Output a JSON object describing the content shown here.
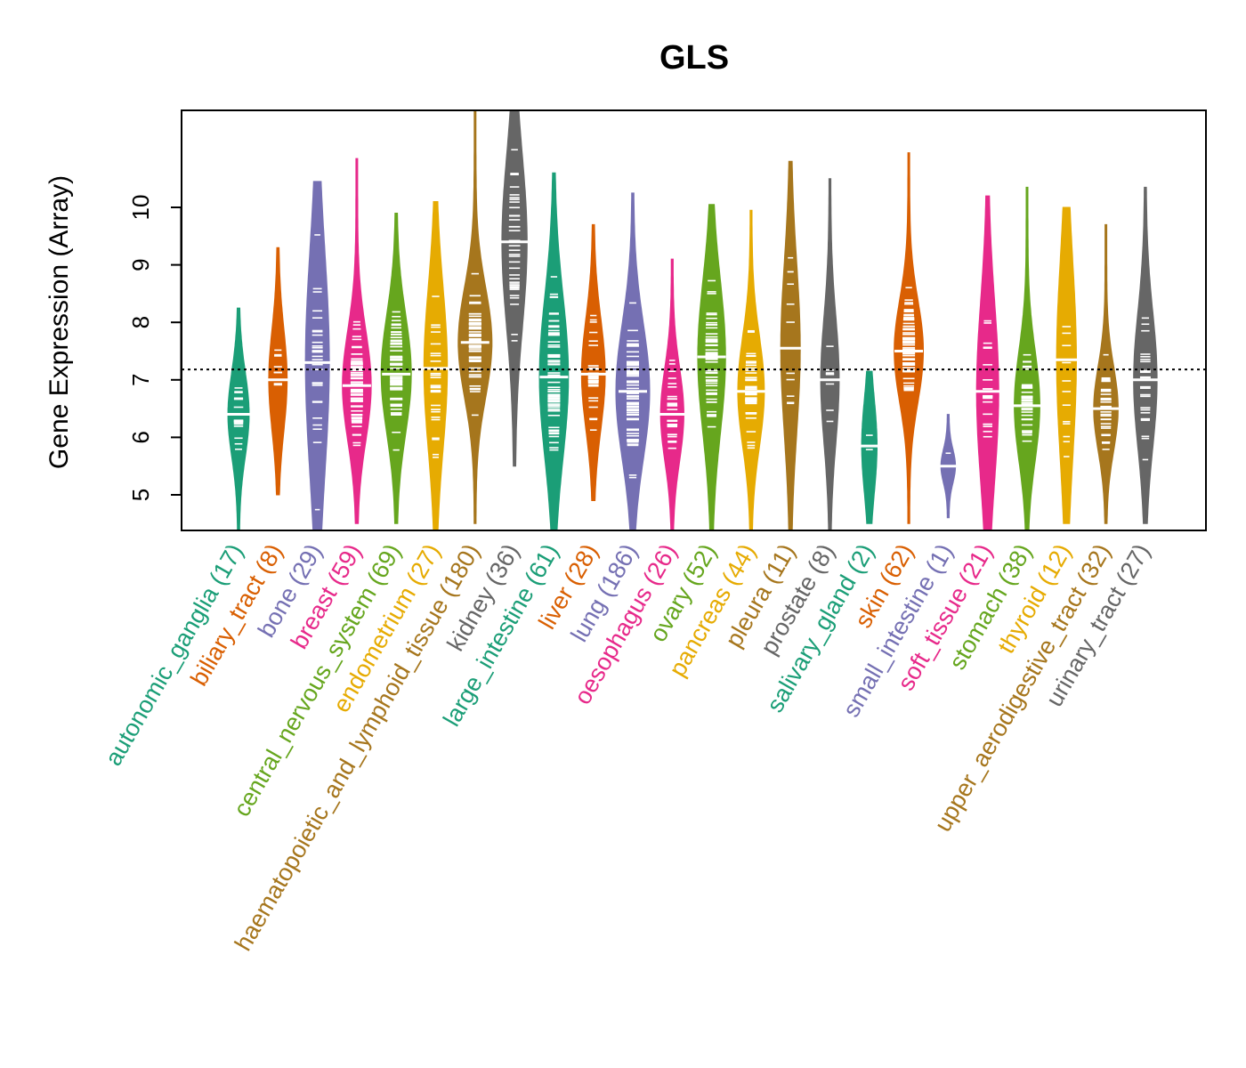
{
  "chart_data": {
    "type": "violin",
    "title": "GLS",
    "xlabel": "",
    "ylabel": "Gene Expression (Array)",
    "ylim": [
      4.4,
      11.7
    ],
    "yticks": [
      5,
      6,
      7,
      8,
      9,
      10
    ],
    "reference_line": 7.18,
    "categories": [
      {
        "name": "autonomic_ganglia",
        "n": 17,
        "color": "#1B9E77",
        "min": 4.4,
        "max": 8.25,
        "median": 6.4,
        "q1": 5.9,
        "q3": 6.9
      },
      {
        "name": "biliary_tract",
        "n": 8,
        "color": "#D95F02",
        "min": 5.0,
        "max": 9.3,
        "median": 7.0,
        "q1": 6.4,
        "q3": 7.6
      },
      {
        "name": "bone",
        "n": 29,
        "color": "#7570B3",
        "min": 4.4,
        "max": 10.45,
        "median": 7.3,
        "q1": 6.0,
        "q3": 8.6
      },
      {
        "name": "breast",
        "n": 59,
        "color": "#E7298A",
        "min": 4.5,
        "max": 10.85,
        "median": 6.9,
        "q1": 6.2,
        "q3": 7.5
      },
      {
        "name": "central_nervous_system",
        "n": 69,
        "color": "#66A61E",
        "min": 4.5,
        "max": 9.9,
        "median": 7.1,
        "q1": 6.4,
        "q3": 7.8
      },
      {
        "name": "endometrium",
        "n": 27,
        "color": "#E6AB02",
        "min": 4.4,
        "max": 10.1,
        "median": 7.2,
        "q1": 6.3,
        "q3": 8.2
      },
      {
        "name": "haematopoietic_and_lymphoid_tissue",
        "n": 180,
        "color": "#A6761D",
        "min": 4.5,
        "max": 11.7,
        "median": 7.65,
        "q1": 6.9,
        "q3": 8.2
      },
      {
        "name": "kidney",
        "n": 36,
        "color": "#666666",
        "min": 5.5,
        "max": 11.7,
        "median": 9.4,
        "q1": 8.6,
        "q3": 10.6
      },
      {
        "name": "large_intestine",
        "n": 61,
        "color": "#1B9E77",
        "min": 4.4,
        "max": 10.6,
        "median": 7.05,
        "q1": 6.0,
        "q3": 7.9
      },
      {
        "name": "liver",
        "n": 28,
        "color": "#D95F02",
        "min": 4.9,
        "max": 9.7,
        "median": 7.1,
        "q1": 6.4,
        "q3": 7.7
      },
      {
        "name": "lung",
        "n": 186,
        "color": "#7570B3",
        "min": 4.4,
        "max": 10.25,
        "median": 6.8,
        "q1": 6.0,
        "q3": 7.6
      },
      {
        "name": "oesophagus",
        "n": 26,
        "color": "#E7298A",
        "min": 4.4,
        "max": 9.1,
        "median": 6.4,
        "q1": 5.9,
        "q3": 7.0
      },
      {
        "name": "ovary",
        "n": 52,
        "color": "#66A61E",
        "min": 4.4,
        "max": 10.05,
        "median": 7.4,
        "q1": 6.6,
        "q3": 8.4
      },
      {
        "name": "pancreas",
        "n": 44,
        "color": "#E6AB02",
        "min": 4.4,
        "max": 9.95,
        "median": 6.8,
        "q1": 6.1,
        "q3": 7.4
      },
      {
        "name": "pleura",
        "n": 11,
        "color": "#A6761D",
        "min": 4.4,
        "max": 10.8,
        "median": 7.55,
        "q1": 6.6,
        "q3": 8.6
      },
      {
        "name": "prostate",
        "n": 8,
        "color": "#666666",
        "min": 4.4,
        "max": 10.5,
        "median": 7.0,
        "q1": 6.3,
        "q3": 7.8
      },
      {
        "name": "salivary_gland",
        "n": 2,
        "color": "#1B9E77",
        "min": 4.5,
        "max": 7.15,
        "median": 5.85,
        "q1": 5.3,
        "q3": 6.4
      },
      {
        "name": "skin",
        "n": 62,
        "color": "#D95F02",
        "min": 4.5,
        "max": 10.95,
        "median": 7.5,
        "q1": 6.9,
        "q3": 8.1
      },
      {
        "name": "small_intestine",
        "n": 1,
        "color": "#7570B3",
        "min": 4.6,
        "max": 6.4,
        "median": 5.5,
        "q1": 5.3,
        "q3": 5.7
      },
      {
        "name": "soft_tissue",
        "n": 21,
        "color": "#E7298A",
        "min": 4.4,
        "max": 10.2,
        "median": 6.8,
        "q1": 5.7,
        "q3": 7.8
      },
      {
        "name": "stomach",
        "n": 38,
        "color": "#66A61E",
        "min": 4.4,
        "max": 10.35,
        "median": 6.55,
        "q1": 5.9,
        "q3": 7.2
      },
      {
        "name": "thyroid",
        "n": 12,
        "color": "#E6AB02",
        "min": 4.5,
        "max": 10.0,
        "median": 7.35,
        "q1": 6.3,
        "q3": 8.6
      },
      {
        "name": "upper_aerodigestive_tract",
        "n": 32,
        "color": "#A6761D",
        "min": 4.5,
        "max": 9.7,
        "median": 6.5,
        "q1": 6.0,
        "q3": 7.0
      },
      {
        "name": "urinary_tract",
        "n": 27,
        "color": "#666666",
        "min": 4.5,
        "max": 10.35,
        "median": 7.0,
        "q1": 6.0,
        "q3": 7.6
      }
    ]
  }
}
